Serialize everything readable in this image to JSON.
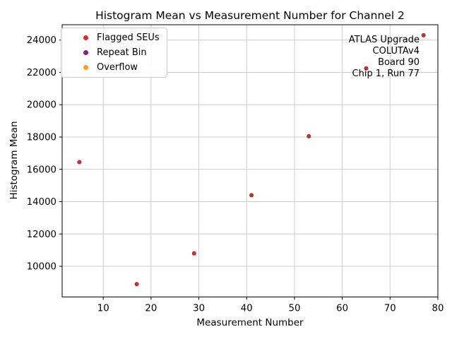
{
  "chart_data": {
    "type": "scatter",
    "title": "Histogram Mean vs Measurement Number for Channel 2",
    "xlabel": "Measurement Number",
    "ylabel": "Histogram Mean",
    "xlim": [
      1.4,
      80
    ],
    "ylim": [
      8100,
      24950
    ],
    "xticks": [
      10,
      20,
      30,
      40,
      50,
      60,
      70,
      80
    ],
    "yticks": [
      10000,
      12000,
      14000,
      16000,
      18000,
      20000,
      22000,
      24000
    ],
    "grid": true,
    "legend_position": "upper-left",
    "series": [
      {
        "name": "Flagged SEUs",
        "color": "#c73333",
        "x": [
          5,
          17,
          29,
          41,
          53,
          65,
          77
        ],
        "y": [
          16450,
          8900,
          10800,
          14400,
          18050,
          22250,
          24300
        ]
      },
      {
        "name": "Repeat Bin",
        "color": "#861e86",
        "x": [],
        "y": []
      },
      {
        "name": "Overflow",
        "color": "#ff9d23",
        "x": [],
        "y": []
      }
    ],
    "annotation": {
      "lines": [
        "ATLAS Upgrade",
        "COLUTAv4",
        "Board 90",
        "Chip 1, Run 77"
      ]
    }
  },
  "style_colors": {
    "grid": "#cccccc",
    "spine": "#000000",
    "tick": "#000000",
    "text": "#000000",
    "point_edge": "#9e2424"
  }
}
